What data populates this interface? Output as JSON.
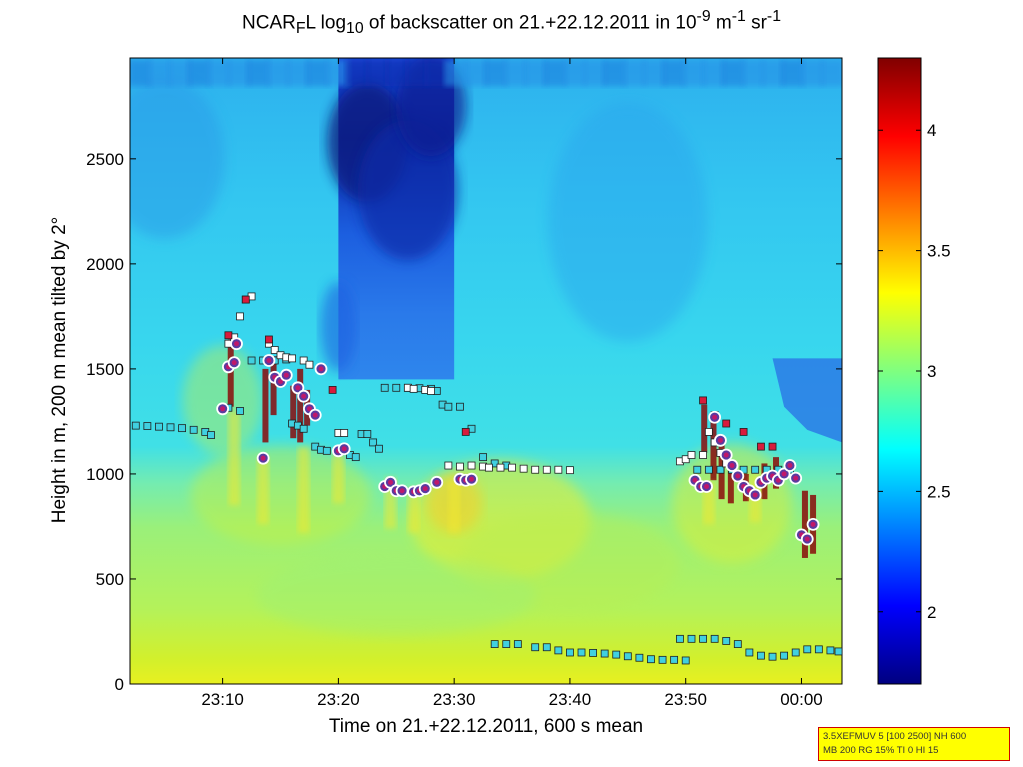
{
  "chart_data": {
    "type": "heatmap",
    "title": {
      "pre": "NCAR",
      "sub1": "F",
      "mid1": "L log",
      "sub2": "10",
      "mid2": " of backscatter on 21.+22.12.2011 in 10",
      "sup1": "-9",
      "mid3": " m",
      "sup2": "-1",
      "mid4": " sr",
      "sup3": "-1"
    },
    "xlabel": "Time on 21.+22.12.2011, 600 s mean",
    "ylabel": "Height in m, 200 m mean tilted by 2°",
    "x_range_minutes": [
      -58,
      3.5
    ],
    "y_range_m": [
      0,
      2980
    ],
    "x_ticks": [
      {
        "label": "23:10",
        "minute": -50
      },
      {
        "label": "23:20",
        "minute": -40
      },
      {
        "label": "23:30",
        "minute": -30
      },
      {
        "label": "23:40",
        "minute": -20
      },
      {
        "label": "23:50",
        "minute": -10
      },
      {
        "label": "00:00",
        "minute": 0
      }
    ],
    "y_ticks": [
      0,
      500,
      1000,
      1500,
      2000,
      2500
    ],
    "colorbar": {
      "min": 1.7,
      "max": 4.3,
      "ticks": [
        2,
        2.5,
        3,
        3.5,
        4
      ],
      "colormap": "jet"
    },
    "features": {
      "dark_column": {
        "x": [
          -40,
          -30
        ],
        "y": [
          1450,
          2980
        ],
        "value": 2.1
      },
      "surface_layer": {
        "y": [
          0,
          700
        ],
        "value": 3.1
      },
      "upper_layer": {
        "y": [
          1000,
          2980
        ],
        "value": 2.6
      },
      "right_dark_wedge": {
        "x": [
          -2.5,
          3.5
        ],
        "y": [
          1550,
          1130
        ],
        "value": 2.4
      }
    },
    "series": [
      {
        "marker": "square",
        "color": "#40d0e0",
        "points": [
          [
            -57.5,
            1230
          ],
          [
            -56.5,
            1228
          ],
          [
            -55.5,
            1225
          ],
          [
            -54.5,
            1222
          ],
          [
            -53.5,
            1218
          ],
          [
            -52.5,
            1210
          ],
          [
            -51.5,
            1200
          ],
          [
            -51,
            1185
          ],
          [
            -49.5,
            1315
          ],
          [
            -48.5,
            1300
          ],
          [
            -47.5,
            1540
          ],
          [
            -46.5,
            1540
          ],
          [
            -45.5,
            1540
          ],
          [
            -44.5,
            1545
          ],
          [
            -44,
            1240
          ],
          [
            -43.5,
            1230
          ],
          [
            -43,
            1215
          ],
          [
            -42,
            1130
          ],
          [
            -41.5,
            1115
          ],
          [
            -41,
            1110
          ],
          [
            -39,
            1090
          ],
          [
            -38.5,
            1080
          ],
          [
            -38,
            1190
          ],
          [
            -37.5,
            1190
          ],
          [
            -37,
            1150
          ],
          [
            -36.5,
            1120
          ],
          [
            -36,
            1410
          ],
          [
            -35,
            1410
          ],
          [
            -34,
            1410
          ],
          [
            -33,
            1408
          ],
          [
            -32,
            1405
          ],
          [
            -31.5,
            1395
          ],
          [
            -31,
            1330
          ],
          [
            -30.5,
            1320
          ],
          [
            -29.5,
            1320
          ],
          [
            -28.5,
            1215
          ],
          [
            -27.5,
            1080
          ],
          [
            -26.5,
            1050
          ],
          [
            -25.5,
            1040
          ],
          [
            -26.5,
            190
          ],
          [
            -25.5,
            190
          ],
          [
            -24.5,
            190
          ],
          [
            -23,
            175
          ],
          [
            -22,
            175
          ],
          [
            -21,
            160
          ],
          [
            -20,
            150
          ],
          [
            -19,
            150
          ],
          [
            -18,
            148
          ],
          [
            -17,
            145
          ],
          [
            -16,
            140
          ],
          [
            -15,
            132
          ],
          [
            -14,
            125
          ],
          [
            -13,
            118
          ],
          [
            -12,
            115
          ],
          [
            -11,
            115
          ],
          [
            -10,
            112
          ],
          [
            -9,
            1020
          ],
          [
            -8,
            1020
          ],
          [
            -7,
            1020
          ],
          [
            -6,
            1020
          ],
          [
            -5,
            1020
          ],
          [
            -4,
            1020
          ],
          [
            -3,
            1020
          ],
          [
            -2,
            1020
          ],
          [
            -1,
            1020
          ],
          [
            -10.5,
            215
          ],
          [
            -9.5,
            215
          ],
          [
            -8.5,
            215
          ],
          [
            -7.5,
            215
          ],
          [
            -6.5,
            205
          ],
          [
            -5.5,
            190
          ],
          [
            -4.5,
            150
          ],
          [
            -3.5,
            135
          ],
          [
            -2.5,
            130
          ],
          [
            -1.5,
            135
          ],
          [
            -0.5,
            150
          ],
          [
            0.5,
            165
          ],
          [
            1.5,
            165
          ],
          [
            2.5,
            160
          ],
          [
            3.2,
            155
          ]
        ]
      },
      {
        "marker": "square",
        "color": "#ffffff",
        "points": [
          [
            -49.5,
            1620
          ],
          [
            -49,
            1650
          ],
          [
            -48.5,
            1750
          ],
          [
            -48,
            1830
          ],
          [
            -47.5,
            1845
          ],
          [
            -46,
            1620
          ],
          [
            -45.5,
            1590
          ],
          [
            -45,
            1565
          ],
          [
            -44.5,
            1555
          ],
          [
            -44,
            1550
          ],
          [
            -43,
            1540
          ],
          [
            -42.5,
            1520
          ],
          [
            -41.5,
            1500
          ],
          [
            -40,
            1195
          ],
          [
            -39.5,
            1195
          ],
          [
            -34,
            1410
          ],
          [
            -33.5,
            1405
          ],
          [
            -32.5,
            1400
          ],
          [
            -32,
            1395
          ],
          [
            -30.5,
            1040
          ],
          [
            -29.5,
            1035
          ],
          [
            -28.5,
            1040
          ],
          [
            -27.5,
            1035
          ],
          [
            -27,
            1030
          ],
          [
            -26,
            1030
          ],
          [
            -25,
            1030
          ],
          [
            -24,
            1025
          ],
          [
            -23,
            1020
          ],
          [
            -22,
            1020
          ],
          [
            -21,
            1020
          ],
          [
            -20,
            1018
          ],
          [
            -10.5,
            1060
          ],
          [
            -10,
            1070
          ],
          [
            -9.5,
            1090
          ],
          [
            -8.5,
            1090
          ],
          [
            -8,
            1200
          ],
          [
            -7.5,
            1150
          ],
          [
            -7,
            1100
          ],
          [
            -6.5,
            1050
          ]
        ]
      },
      {
        "marker": "square",
        "color": "#d81b3c",
        "points": [
          [
            -49.5,
            1660
          ],
          [
            -48,
            1830
          ],
          [
            -46,
            1640
          ],
          [
            -40.5,
            1400
          ],
          [
            -29,
            1200
          ],
          [
            -8.5,
            1350
          ],
          [
            -7.5,
            1280
          ],
          [
            -6.5,
            1240
          ],
          [
            -5,
            1200
          ],
          [
            -3.5,
            1130
          ],
          [
            -2.5,
            1130
          ]
        ]
      },
      {
        "marker": "circle",
        "color": "#5a3aa0",
        "points": [
          [
            -50,
            1310
          ],
          [
            -49.5,
            1510
          ],
          [
            -49,
            1530
          ],
          [
            -48.8,
            1620
          ],
          [
            -46.5,
            1075
          ],
          [
            -46,
            1540
          ],
          [
            -45.5,
            1460
          ],
          [
            -45,
            1440
          ],
          [
            -44.5,
            1470
          ],
          [
            -43.5,
            1410
          ],
          [
            -43,
            1370
          ],
          [
            -42.5,
            1310
          ],
          [
            -42,
            1280
          ],
          [
            -41.5,
            1500
          ],
          [
            -40,
            1110
          ],
          [
            -39.5,
            1120
          ],
          [
            -36,
            940
          ],
          [
            -35.5,
            960
          ],
          [
            -35,
            920
          ],
          [
            -34.5,
            920
          ],
          [
            -33.5,
            915
          ],
          [
            -33,
            920
          ],
          [
            -32.5,
            930
          ],
          [
            -31.5,
            960
          ],
          [
            -29.5,
            975
          ],
          [
            -29,
            970
          ],
          [
            -28.5,
            975
          ],
          [
            -9.2,
            970
          ],
          [
            -8.7,
            940
          ],
          [
            -8.2,
            940
          ],
          [
            -7.5,
            1270
          ],
          [
            -7,
            1160
          ],
          [
            -6.5,
            1090
          ],
          [
            -6,
            1040
          ],
          [
            -5.5,
            990
          ],
          [
            -5,
            940
          ],
          [
            -4.5,
            920
          ],
          [
            -4,
            900
          ],
          [
            -3.5,
            960
          ],
          [
            -3,
            980
          ],
          [
            -2.5,
            990
          ],
          [
            -2,
            970
          ],
          [
            -1.5,
            1000
          ],
          [
            -1,
            1040
          ],
          [
            -0.5,
            980
          ],
          [
            0,
            710
          ],
          [
            0.5,
            690
          ],
          [
            1,
            760
          ]
        ]
      }
    ]
  },
  "info_box": {
    "line1": "3.5XEFMUV 5 [100 2500] NH 600",
    "line2": "MB 200 RG 15% TI 0 HI 15"
  }
}
